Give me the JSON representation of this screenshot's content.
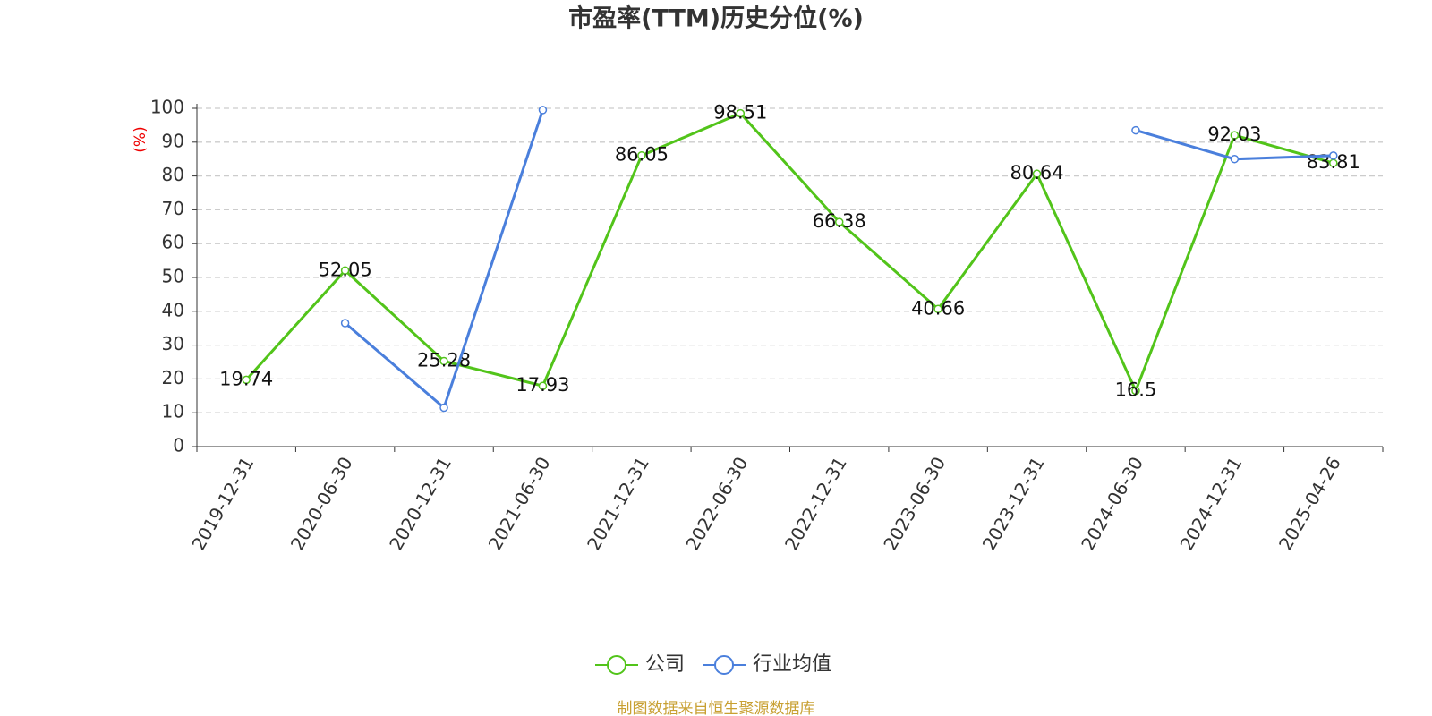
{
  "chart_data": {
    "type": "line",
    "title": "市盈率(TTM)历史分位(%)",
    "y_label": "(%)",
    "categories": [
      "2019-12-31",
      "2020-06-30",
      "2020-12-31",
      "2021-06-30",
      "2021-12-31",
      "2022-06-30",
      "2022-12-31",
      "2023-06-30",
      "2023-12-31",
      "2024-06-30",
      "2024-12-31",
      "2025-04-26"
    ],
    "series": [
      {
        "name": "公司",
        "color": "#52c41a",
        "values": [
          19.74,
          52.05,
          25.28,
          17.93,
          86.05,
          98.51,
          66.38,
          40.66,
          80.64,
          16.5,
          92.03,
          83.81
        ],
        "show_labels": true
      },
      {
        "name": "行业均值",
        "color": "#4a7fdc",
        "values": [
          null,
          36.5,
          11.5,
          99.5,
          null,
          null,
          null,
          null,
          null,
          93.5,
          85,
          86
        ],
        "show_labels": false
      }
    ],
    "ylim": [
      0,
      100
    ],
    "yticks": [
      0,
      10,
      20,
      30,
      40,
      50,
      60,
      70,
      80,
      90,
      100
    ],
    "grid": true,
    "legend": "bottom",
    "source": "制图数据来自恒生聚源数据库"
  }
}
